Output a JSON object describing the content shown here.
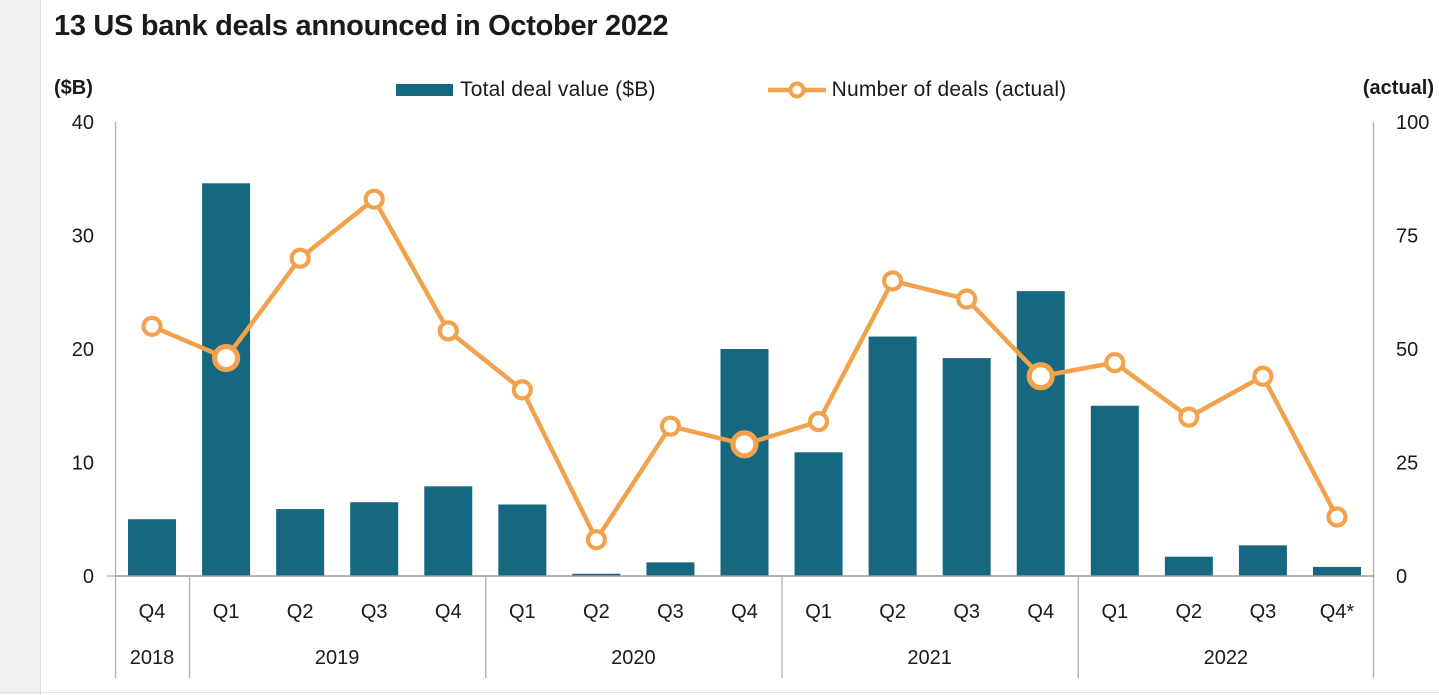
{
  "page": {
    "title": "13 US bank deals announced in October 2022"
  },
  "legend": {
    "bar_label": "Total deal value ($B)",
    "line_label": "Number of deals (actual)"
  },
  "colors": {
    "bar": "#15687F",
    "line": "#F2A24C",
    "marker_fill": "#ffffff",
    "axis_line": "#b0b0b0",
    "baseline": "#9a9a9a",
    "text": "#1a1a1a"
  },
  "chart_data": {
    "type": "bar",
    "subtype": "bar+line-combo",
    "title": "13 US bank deals announced in October 2022",
    "categories": [
      "Q4",
      "Q1",
      "Q2",
      "Q3",
      "Q4",
      "Q1",
      "Q2",
      "Q3",
      "Q4",
      "Q1",
      "Q2",
      "Q3",
      "Q4",
      "Q1",
      "Q2",
      "Q3",
      "Q4*"
    ],
    "year_groups": [
      {
        "label": "2018",
        "quarters": 1
      },
      {
        "label": "2019",
        "quarters": 4
      },
      {
        "label": "2020",
        "quarters": 4
      },
      {
        "label": "2021",
        "quarters": 4
      },
      {
        "label": "2022",
        "quarters": 4
      }
    ],
    "series": [
      {
        "name": "Total deal value ($B)",
        "type": "bar",
        "axis": "left",
        "values": [
          5.0,
          34.6,
          5.9,
          6.5,
          7.9,
          6.3,
          0.2,
          1.2,
          20.0,
          10.9,
          21.1,
          19.2,
          25.1,
          15.0,
          1.7,
          2.7,
          0.8
        ]
      },
      {
        "name": "Number of deals (actual)",
        "type": "line",
        "axis": "right",
        "values": [
          55,
          48,
          70,
          83,
          54,
          41,
          8,
          33,
          29,
          34,
          65,
          61,
          44,
          47,
          35,
          44,
          13
        ],
        "emphasized_indices": [
          1,
          8,
          12
        ]
      }
    ],
    "left_axis": {
      "label": "($B)",
      "min": 0,
      "max": 40,
      "ticks": [
        0,
        10,
        20,
        30,
        40
      ]
    },
    "right_axis": {
      "label": "(actual)",
      "min": 0,
      "max": 100,
      "ticks": [
        0,
        25,
        50,
        75,
        100
      ]
    },
    "grid": false,
    "legend_position": "top"
  }
}
